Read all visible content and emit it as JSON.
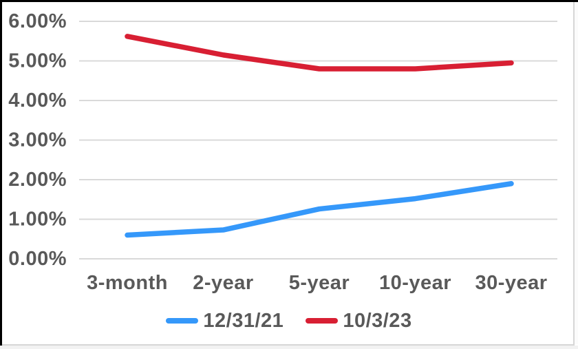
{
  "colors": {
    "background": "#ffffff",
    "frame_border": "#000000",
    "edge_line": "#d6d6d6",
    "gridline": "#d9d9d9",
    "axis_text": "#595959",
    "series_blue": "#3598fa",
    "series_red": "#d81f33"
  },
  "legend": {
    "items": [
      {
        "label": "12/31/21",
        "color": "#3598fa"
      },
      {
        "label": "10/3/23",
        "color": "#d81f33"
      }
    ]
  },
  "chart_data": {
    "type": "line",
    "title": "",
    "xlabel": "",
    "ylabel": "",
    "categories": [
      "3-month",
      "2-year",
      "5-year",
      "10-year",
      "30-year"
    ],
    "series": [
      {
        "name": "12/31/21",
        "color": "#3598fa",
        "values": [
          0.6,
          0.73,
          1.26,
          1.52,
          1.9
        ]
      },
      {
        "name": "10/3/23",
        "color": "#d81f33",
        "values": [
          5.62,
          5.15,
          4.8,
          4.8,
          4.95
        ]
      }
    ],
    "y_ticks": [
      {
        "label": "6.00%",
        "value": 6
      },
      {
        "label": "5.00%",
        "value": 5
      },
      {
        "label": "4.00%",
        "value": 4
      },
      {
        "label": "3.00%",
        "value": 3
      },
      {
        "label": "2.00%",
        "value": 2
      },
      {
        "label": "1.00%",
        "value": 1
      },
      {
        "label": "0.00%",
        "value": 0
      }
    ],
    "ylim": [
      0,
      6
    ],
    "grid": true,
    "legend_position": "bottom"
  }
}
